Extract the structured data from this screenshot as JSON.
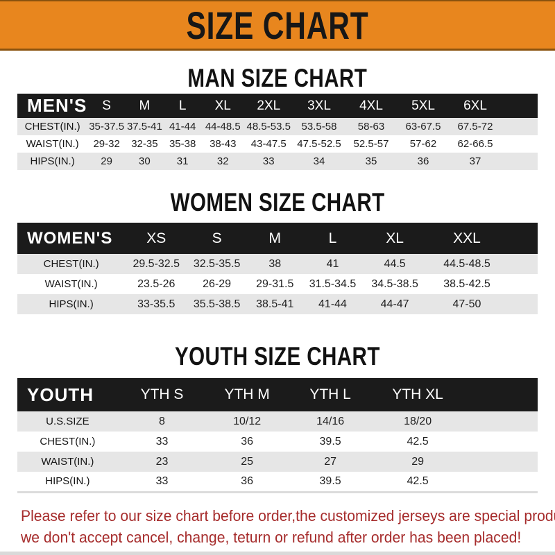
{
  "banner": {
    "title": "SIZE CHART",
    "bg_color": "#E8861E",
    "text_color": "#171717"
  },
  "sections": {
    "men": {
      "title": "MAN SIZE CHART"
    },
    "women": {
      "title": "WOMEN SIZE CHART"
    },
    "youth": {
      "title": "YOUTH SIZE CHART"
    }
  },
  "tables": {
    "men": {
      "header": [
        "MEN'S",
        "S",
        "M",
        "L",
        "XL",
        "2XL",
        "3XL",
        "4XL",
        "5XL",
        "6XL"
      ],
      "rows": [
        [
          "CHEST(IN.)",
          "35-37.5",
          "37.5-41",
          "41-44",
          "44-48.5",
          "48.5-53.5",
          "53.5-58",
          "58-63",
          "63-67.5",
          "67.5-72"
        ],
        [
          "WAIST(IN.)",
          "29-32",
          "32-35",
          "35-38",
          "38-43",
          "43-47.5",
          "47.5-52.5",
          "52.5-57",
          "57-62",
          "62-66.5"
        ],
        [
          "HIPS(IN.)",
          "29",
          "30",
          "31",
          "32",
          "33",
          "34",
          "35",
          "36",
          "37"
        ]
      ]
    },
    "women": {
      "header": [
        "WOMEN'S",
        "XS",
        "S",
        "M",
        "L",
        "XL",
        "XXL"
      ],
      "rows": [
        [
          "CHEST(IN.)",
          "29.5-32.5",
          "32.5-35.5",
          "38",
          "41",
          "44.5",
          "44.5-48.5"
        ],
        [
          "WAIST(IN.)",
          "23.5-26",
          "26-29",
          "29-31.5",
          "31.5-34.5",
          "34.5-38.5",
          "38.5-42.5"
        ],
        [
          "HIPS(IN.)",
          "33-35.5",
          "35.5-38.5",
          "38.5-41",
          "41-44",
          "44-47",
          "47-50"
        ]
      ]
    },
    "youth": {
      "header": [
        "YOUTH",
        "YTH S",
        "YTH M",
        "YTH L",
        "YTH XL"
      ],
      "rows": [
        [
          "U.S.SIZE",
          "8",
          "10/12",
          "14/16",
          "18/20"
        ],
        [
          "CHEST(IN.)",
          "33",
          "36",
          "39.5",
          "42.5"
        ],
        [
          "WAIST(IN.)",
          "23",
          "25",
          "27",
          "29"
        ],
        [
          "HIPS(IN.)",
          "33",
          "36",
          "39.5",
          "42.5"
        ]
      ]
    }
  },
  "footer": {
    "lines": [
      "Please refer to our size chart before order,the customized jerseys are special products,",
      "we don't accept cancel, change, teturn or refund after order has been placed!"
    ],
    "text_color": "#A62C2C"
  }
}
